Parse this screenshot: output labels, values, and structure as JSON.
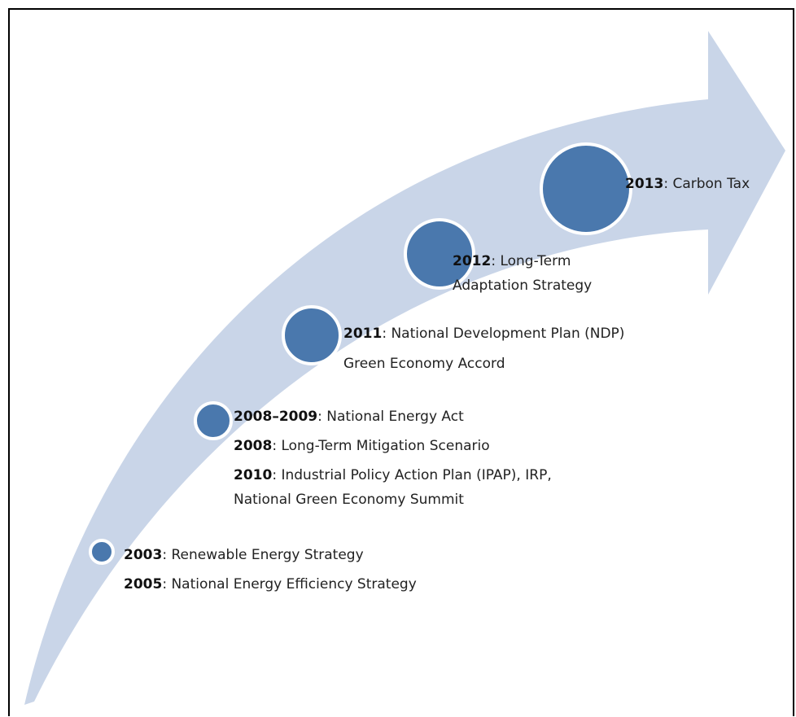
{
  "milestones": [
    {
      "entries": [
        {
          "year": "2003",
          "lines": [
            ": Renewable Energy Strategy"
          ]
        },
        {
          "year": "2005",
          "lines": [
            ": National Energy Efficiency Strategy"
          ]
        }
      ]
    },
    {
      "entries": [
        {
          "year": "2008–2009",
          "lines": [
            ": National Energy Act"
          ]
        },
        {
          "year": "2008",
          "lines": [
            ": Long-Term Mitigation Scenario"
          ]
        },
        {
          "year": "2010",
          "lines": [
            ": Industrial Policy Action Plan (IPAP), IRP,",
            "National Green Economy Summit"
          ]
        }
      ]
    },
    {
      "entries": [
        {
          "year": "2011",
          "lines": [
            ": National Development Plan (NDP)"
          ]
        },
        {
          "lines": [
            "Green Economy Accord"
          ]
        }
      ]
    },
    {
      "entries": [
        {
          "year": "2012",
          "lines": [
            ": Long-Term",
            "Adaptation Strategy"
          ]
        }
      ]
    },
    {
      "entries": [
        {
          "year": "2013",
          "lines": [
            ": Carbon Tax"
          ]
        }
      ]
    }
  ]
}
